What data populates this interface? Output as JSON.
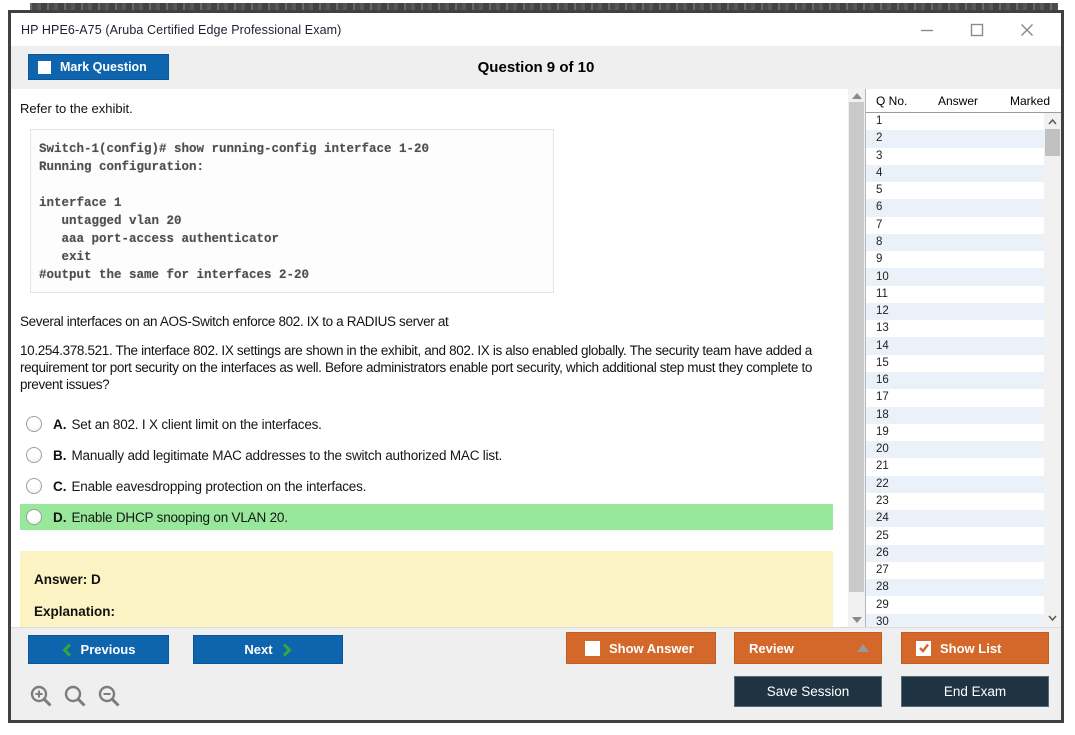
{
  "window": {
    "title": "HP HPE6-A75 (Aruba Certified Edge Professional Exam)",
    "controls": [
      "minimize-icon",
      "maximize-icon",
      "close-icon"
    ]
  },
  "header": {
    "mark_question_label": "Mark Question",
    "mark_question_checked": false,
    "question_counter": "Question 9 of 10"
  },
  "question": {
    "refer_text": "Refer to the exhibit.",
    "exhibit": {
      "lines": [
        "Switch-1(config)# show running-config interface 1-20",
        "Running configuration:",
        "",
        "interface 1",
        "   untagged vlan 20",
        "   aaa port-access authenticator",
        "   exit",
        "#output the same for interfaces 2-20"
      ]
    },
    "paragraph1": "Several interfaces on an AOS-Switch enforce 802. IX to a RADIUS server at",
    "paragraph2": "10.254.378.521. The interface 802. IX settings are shown in the exhibit, and 802. IX is also enabled globally. The security team have added a requirement tor port security on the interfaces as well. Before administrators enable port security, which additional step must they complete to prevent issues?",
    "options": [
      {
        "letter": "A.",
        "text": "Set an 802. I X client limit on the interfaces.",
        "highlighted": false
      },
      {
        "letter": "B.",
        "text": "Manually add legitimate MAC addresses to the switch authorized MAC list.",
        "highlighted": false
      },
      {
        "letter": "C.",
        "text": "Enable eavesdropping protection on the interfaces.",
        "highlighted": false
      },
      {
        "letter": "D.",
        "text": "Enable DHCP snooping on VLAN 20.",
        "highlighted": true
      }
    ],
    "answer_label": "Answer: D",
    "explanation_label": "Explanation:"
  },
  "sidebar": {
    "columns": [
      "Q No.",
      "Answer",
      "Marked"
    ],
    "rows": [
      {
        "q": "1",
        "answer": "",
        "marked": ""
      },
      {
        "q": "2",
        "answer": "",
        "marked": ""
      },
      {
        "q": "3",
        "answer": "",
        "marked": ""
      },
      {
        "q": "4",
        "answer": "",
        "marked": ""
      },
      {
        "q": "5",
        "answer": "",
        "marked": ""
      },
      {
        "q": "6",
        "answer": "",
        "marked": ""
      },
      {
        "q": "7",
        "answer": "",
        "marked": ""
      },
      {
        "q": "8",
        "answer": "",
        "marked": ""
      },
      {
        "q": "9",
        "answer": "",
        "marked": ""
      },
      {
        "q": "10",
        "answer": "",
        "marked": ""
      },
      {
        "q": "11",
        "answer": "",
        "marked": ""
      },
      {
        "q": "12",
        "answer": "",
        "marked": ""
      },
      {
        "q": "13",
        "answer": "",
        "marked": ""
      },
      {
        "q": "14",
        "answer": "",
        "marked": ""
      },
      {
        "q": "15",
        "answer": "",
        "marked": ""
      },
      {
        "q": "16",
        "answer": "",
        "marked": ""
      },
      {
        "q": "17",
        "answer": "",
        "marked": ""
      },
      {
        "q": "18",
        "answer": "",
        "marked": ""
      },
      {
        "q": "19",
        "answer": "",
        "marked": ""
      },
      {
        "q": "20",
        "answer": "",
        "marked": ""
      },
      {
        "q": "21",
        "answer": "",
        "marked": ""
      },
      {
        "q": "22",
        "answer": "",
        "marked": ""
      },
      {
        "q": "23",
        "answer": "",
        "marked": ""
      },
      {
        "q": "24",
        "answer": "",
        "marked": ""
      },
      {
        "q": "25",
        "answer": "",
        "marked": ""
      },
      {
        "q": "26",
        "answer": "",
        "marked": ""
      },
      {
        "q": "27",
        "answer": "",
        "marked": ""
      },
      {
        "q": "28",
        "answer": "",
        "marked": ""
      },
      {
        "q": "29",
        "answer": "",
        "marked": ""
      },
      {
        "q": "30",
        "answer": "",
        "marked": ""
      }
    ]
  },
  "footer": {
    "previous_label": "Previous",
    "next_label": "Next",
    "show_answer_label": "Show Answer",
    "show_answer_checked": false,
    "review_label": "Review",
    "show_list_label": "Show List",
    "show_list_checked": true,
    "save_session_label": "Save Session",
    "end_exam_label": "End Exam",
    "zoom_icons": [
      "zoom-in-icon",
      "zoom-icon",
      "zoom-out-icon"
    ]
  },
  "colors": {
    "primary_blue": "#0f64ae",
    "accent_orange": "#d4682a",
    "dark_navy": "#1f3443",
    "correct_highlight_green": "#98e89b",
    "answer_panel_yellow": "#fbf3c3",
    "row_stripe_blue": "#eaf1f8",
    "chevron_green": "#35a839",
    "band_gray": "#efefef"
  }
}
